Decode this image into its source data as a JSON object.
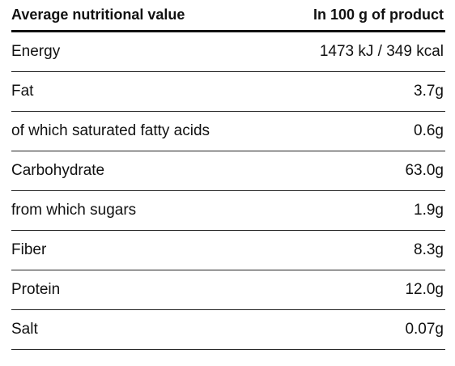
{
  "table": {
    "header": {
      "label": "Average nutritional value",
      "value": "In 100 g of product"
    },
    "rows": [
      {
        "label": "Energy",
        "value": "1473 kJ / 349 kcal"
      },
      {
        "label": "Fat",
        "value": "3.7g"
      },
      {
        "label": "of which saturated fatty acids",
        "value": "0.6g"
      },
      {
        "label": "Carbohydrate",
        "value": "63.0g"
      },
      {
        "label": "from which sugars",
        "value": "1.9g"
      },
      {
        "label": "Fiber",
        "value": "8.3g"
      },
      {
        "label": "Protein",
        "value": "12.0g"
      },
      {
        "label": "Salt",
        "value": "0.07g"
      }
    ]
  }
}
